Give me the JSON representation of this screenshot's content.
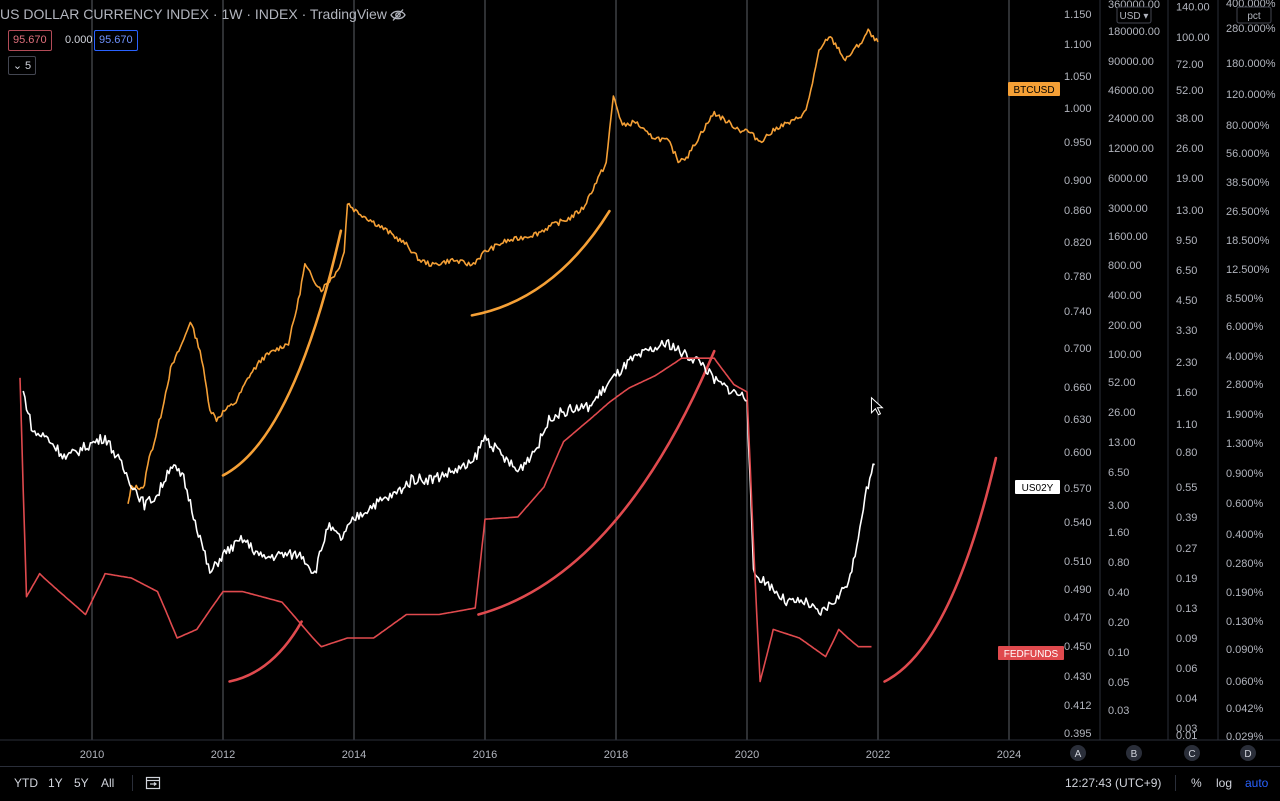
{
  "header": {
    "title": "US DOLLAR CURRENCY INDEX · 1W · INDEX · TradingView",
    "values": [
      "95.670",
      "0.000",
      "95.670"
    ],
    "collapse_count": "5",
    "eye_icon": "eye-off-icon"
  },
  "bottom_bar": {
    "ranges": [
      "YTD",
      "1Y",
      "5Y",
      "All"
    ],
    "time": "12:27:43 (UTC+9)",
    "pct": "%",
    "log": "log",
    "auto": "auto",
    "goto_icon": "calendar-range-icon"
  },
  "colors": {
    "btc": "#f5a036",
    "us02y": "#ffffff",
    "fedfunds": "#e04a4e",
    "grid": "#5c5f66",
    "axis_text": "#b2b5be"
  },
  "chart_data": {
    "type": "line",
    "x_axis": {
      "ticks": [
        "2010",
        "2012",
        "2014",
        "2016",
        "2018",
        "2020",
        "2022",
        "2024"
      ]
    },
    "scales": [
      {
        "id": "A",
        "label": "",
        "ticks": [
          "1.150",
          "1.100",
          "1.050",
          "1.000",
          "0.950",
          "0.900",
          "0.860",
          "0.820",
          "0.780",
          "0.740",
          "0.700",
          "0.660",
          "0.630",
          "0.600",
          "0.570",
          "0.540",
          "0.510",
          "0.490",
          "0.470",
          "0.450",
          "0.430",
          "0.412",
          "0.395"
        ]
      },
      {
        "id": "B",
        "label": "USD",
        "ticks": [
          "360000.00",
          "180000.00",
          "90000.00",
          "46000.00",
          "24000.00",
          "12000.00",
          "6000.00",
          "3000.00",
          "1600.00",
          "800.00",
          "400.00",
          "200.00",
          "100.00",
          "52.00",
          "26.00",
          "13.00",
          "6.50",
          "3.00",
          "1.60",
          "0.80",
          "0.40",
          "0.20",
          "0.10",
          "0.05",
          "0.03"
        ]
      },
      {
        "id": "C",
        "label": "",
        "ticks": [
          "140.00",
          "100.00",
          "72.00",
          "52.00",
          "38.00",
          "26.00",
          "19.00",
          "13.00",
          "9.50",
          "6.50",
          "4.50",
          "3.30",
          "2.30",
          "1.60",
          "1.10",
          "0.80",
          "0.55",
          "0.39",
          "0.27",
          "0.19",
          "0.13",
          "0.09",
          "0.06",
          "0.04",
          "0.03",
          "0.01"
        ]
      },
      {
        "id": "D",
        "label": "pct",
        "ticks": [
          "400.000%",
          "280.000%",
          "180.000%",
          "120.000%",
          "80.000%",
          "56.000%",
          "38.500%",
          "26.500%",
          "18.500%",
          "12.500%",
          "8.500%",
          "6.000%",
          "4.000%",
          "2.800%",
          "1.900%",
          "1.300%",
          "0.900%",
          "0.600%",
          "0.400%",
          "0.280%",
          "0.190%",
          "0.130%",
          "0.090%",
          "0.060%",
          "0.042%",
          "0.029%"
        ]
      }
    ],
    "scale_letters": [
      "A",
      "B",
      "C",
      "D"
    ],
    "badges": [
      {
        "label": "BTCUSD",
        "color": "#f5a036",
        "text_color": "#000000"
      },
      {
        "label": "US02Y",
        "color": "#ffffff",
        "text_color": "#000000"
      },
      {
        "label": "FEDFUNDS",
        "color": "#e04a4e",
        "text_color": "#ffffff"
      }
    ],
    "series": [
      {
        "id": "btc",
        "key": "BTCUSD",
        "points": [
          [
            2010.55,
            3
          ],
          [
            2010.6,
            4.5
          ],
          [
            2010.8,
            4.6
          ],
          [
            2010.85,
            8
          ],
          [
            2010.95,
            13
          ],
          [
            2011.05,
            24
          ],
          [
            2011.2,
            70
          ],
          [
            2011.4,
            140
          ],
          [
            2011.5,
            220
          ],
          [
            2011.65,
            110
          ],
          [
            2011.8,
            28
          ],
          [
            2011.9,
            22
          ],
          [
            2012.0,
            26
          ],
          [
            2012.2,
            33
          ],
          [
            2012.4,
            60
          ],
          [
            2012.6,
            90
          ],
          [
            2012.8,
            110
          ],
          [
            2013.0,
            130
          ],
          [
            2013.15,
            350
          ],
          [
            2013.25,
            800
          ],
          [
            2013.35,
            620
          ],
          [
            2013.5,
            450
          ],
          [
            2013.75,
            700
          ],
          [
            2013.85,
            1100
          ],
          [
            2013.9,
            3400
          ],
          [
            2014.0,
            2900
          ],
          [
            2014.2,
            2400
          ],
          [
            2014.5,
            1800
          ],
          [
            2014.8,
            1300
          ],
          [
            2015.0,
            900
          ],
          [
            2015.2,
            800
          ],
          [
            2015.5,
            900
          ],
          [
            2015.8,
            800
          ],
          [
            2016.0,
            1100
          ],
          [
            2016.3,
            1400
          ],
          [
            2016.5,
            1500
          ],
          [
            2016.8,
            1700
          ],
          [
            2017.0,
            2000
          ],
          [
            2017.3,
            2400
          ],
          [
            2017.5,
            3000
          ],
          [
            2017.7,
            5500
          ],
          [
            2017.85,
            8500
          ],
          [
            2017.96,
            40000
          ],
          [
            2018.1,
            20000
          ],
          [
            2018.3,
            22000
          ],
          [
            2018.5,
            16000
          ],
          [
            2018.8,
            14000
          ],
          [
            2018.95,
            9000
          ],
          [
            2019.1,
            10000
          ],
          [
            2019.3,
            17000
          ],
          [
            2019.5,
            27000
          ],
          [
            2019.7,
            22000
          ],
          [
            2019.9,
            18000
          ],
          [
            2020.0,
            18000
          ],
          [
            2020.2,
            14000
          ],
          [
            2020.5,
            20000
          ],
          [
            2020.7,
            22000
          ],
          [
            2020.9,
            28000
          ],
          [
            2021.0,
            55000
          ],
          [
            2021.1,
            110000
          ],
          [
            2021.25,
            160000
          ],
          [
            2021.4,
            120000
          ],
          [
            2021.5,
            90000
          ],
          [
            2021.6,
            110000
          ],
          [
            2021.75,
            140000
          ],
          [
            2021.85,
            180000
          ],
          [
            2021.95,
            145000
          ],
          [
            2022.0,
            140000
          ]
        ]
      },
      {
        "id": "us02y",
        "key": "US02Y",
        "points": [
          [
            2008.95,
            1.6
          ],
          [
            2009.1,
            1.0
          ],
          [
            2009.3,
            0.95
          ],
          [
            2009.6,
            0.75
          ],
          [
            2009.9,
            0.85
          ],
          [
            2010.2,
            0.95
          ],
          [
            2010.5,
            0.65
          ],
          [
            2010.8,
            0.45
          ],
          [
            2011.0,
            0.5
          ],
          [
            2011.2,
            0.7
          ],
          [
            2011.4,
            0.6
          ],
          [
            2011.6,
            0.35
          ],
          [
            2011.8,
            0.2
          ],
          [
            2012.0,
            0.25
          ],
          [
            2012.3,
            0.3
          ],
          [
            2012.6,
            0.24
          ],
          [
            2012.9,
            0.25
          ],
          [
            2013.2,
            0.25
          ],
          [
            2013.4,
            0.2
          ],
          [
            2013.6,
            0.35
          ],
          [
            2013.8,
            0.3
          ],
          [
            2014.0,
            0.38
          ],
          [
            2014.3,
            0.45
          ],
          [
            2014.6,
            0.5
          ],
          [
            2014.9,
            0.6
          ],
          [
            2015.2,
            0.6
          ],
          [
            2015.5,
            0.65
          ],
          [
            2015.8,
            0.7
          ],
          [
            2016.0,
            0.95
          ],
          [
            2016.2,
            0.8
          ],
          [
            2016.5,
            0.65
          ],
          [
            2016.8,
            0.85
          ],
          [
            2017.0,
            1.2
          ],
          [
            2017.3,
            1.3
          ],
          [
            2017.6,
            1.35
          ],
          [
            2017.9,
            1.8
          ],
          [
            2018.2,
            2.3
          ],
          [
            2018.5,
            2.6
          ],
          [
            2018.8,
            2.85
          ],
          [
            2019.0,
            2.55
          ],
          [
            2019.3,
            2.3
          ],
          [
            2019.5,
            1.85
          ],
          [
            2019.8,
            1.6
          ],
          [
            2020.0,
            1.5
          ],
          [
            2020.1,
            0.2
          ],
          [
            2020.3,
            0.18
          ],
          [
            2020.6,
            0.14
          ],
          [
            2020.9,
            0.14
          ],
          [
            2021.1,
            0.12
          ],
          [
            2021.4,
            0.15
          ],
          [
            2021.6,
            0.2
          ],
          [
            2021.8,
            0.5
          ],
          [
            2021.95,
            0.7
          ]
        ]
      },
      {
        "id": "fedfunds",
        "key": "FEDFUNDS",
        "points": [
          [
            2008.9,
            1.9
          ],
          [
            2009.0,
            0.15
          ],
          [
            2009.2,
            0.2
          ],
          [
            2009.5,
            0.16
          ],
          [
            2009.9,
            0.12
          ],
          [
            2010.2,
            0.2
          ],
          [
            2010.6,
            0.19
          ],
          [
            2011.0,
            0.16
          ],
          [
            2011.3,
            0.09
          ],
          [
            2011.6,
            0.1
          ],
          [
            2012.0,
            0.16
          ],
          [
            2012.3,
            0.16
          ],
          [
            2012.9,
            0.14
          ],
          [
            2013.5,
            0.08
          ],
          [
            2013.9,
            0.09
          ],
          [
            2014.3,
            0.09
          ],
          [
            2014.8,
            0.12
          ],
          [
            2015.3,
            0.12
          ],
          [
            2015.85,
            0.13
          ],
          [
            2016.0,
            0.38
          ],
          [
            2016.5,
            0.39
          ],
          [
            2016.9,
            0.55
          ],
          [
            2017.2,
            0.9
          ],
          [
            2017.6,
            1.16
          ],
          [
            2017.9,
            1.42
          ],
          [
            2018.2,
            1.68
          ],
          [
            2018.6,
            1.95
          ],
          [
            2019.0,
            2.4
          ],
          [
            2019.5,
            2.4
          ],
          [
            2019.8,
            1.75
          ],
          [
            2020.0,
            1.6
          ],
          [
            2020.2,
            0.05
          ],
          [
            2020.4,
            0.1
          ],
          [
            2020.8,
            0.09
          ],
          [
            2021.2,
            0.07
          ],
          [
            2021.4,
            0.1
          ],
          [
            2021.7,
            0.08
          ],
          [
            2021.9,
            0.08
          ]
        ]
      }
    ],
    "annotations": [
      {
        "type": "curve",
        "color": "#f5a036",
        "from": [
          2012.0,
          6
        ],
        "to": [
          2013.8,
          1800
        ]
      },
      {
        "type": "curve",
        "color": "#f5a036",
        "from": [
          2015.8,
          250
        ],
        "to": [
          2017.9,
          2800
        ]
      },
      {
        "type": "curve",
        "color": "#e04a4e",
        "from": [
          2012.1,
          0.05
        ],
        "to": [
          2013.2,
          0.11
        ]
      },
      {
        "type": "curve",
        "color": "#e04a4e",
        "from": [
          2015.9,
          0.12
        ],
        "to": [
          2019.5,
          2.6
        ]
      },
      {
        "type": "curve",
        "color": "#e04a4e",
        "from": [
          2022.1,
          0.05
        ],
        "to": [
          2023.8,
          0.75
        ]
      }
    ],
    "cursor": {
      "type": "pointer",
      "x": 2021.9,
      "y": 1.3
    }
  }
}
